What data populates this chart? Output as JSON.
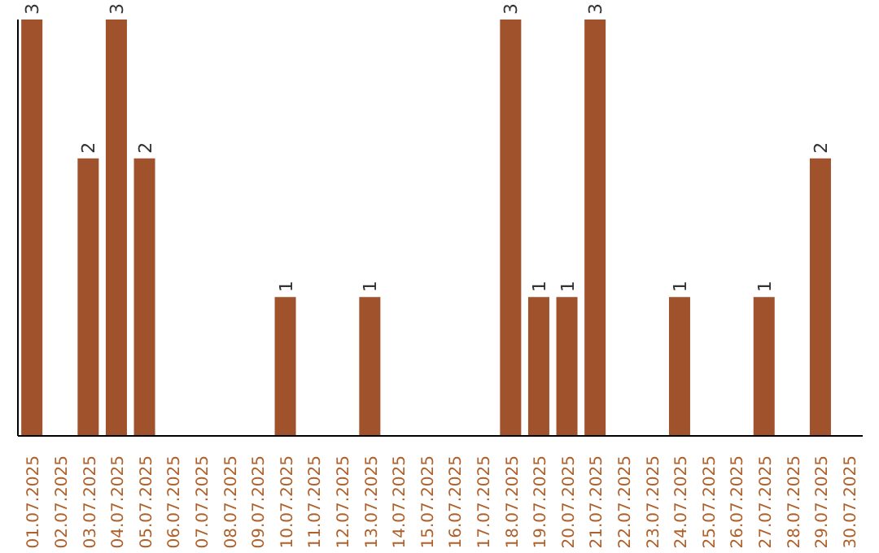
{
  "chart_data": {
    "type": "bar",
    "categories": [
      "01.07.2025",
      "02.07.2025",
      "03.07.2025",
      "04.07.2025",
      "05.07.2025",
      "06.07.2025",
      "07.07.2025",
      "08.07.2025",
      "09.07.2025",
      "10.07.2025",
      "11.07.2025",
      "12.07.2025",
      "13.07.2025",
      "14.07.2025",
      "15.07.2025",
      "16.07.2025",
      "17.07.2025",
      "18.07.2025",
      "19.07.2025",
      "20.07.2025",
      "21.07.2025",
      "22.07.2025",
      "23.07.2025",
      "24.07.2025",
      "25.07.2025",
      "26.07.2025",
      "27.07.2025",
      "28.07.2025",
      "29.07.2025",
      "30.07.2025"
    ],
    "values": [
      3,
      0,
      2,
      3,
      2,
      0,
      0,
      0,
      0,
      1,
      0,
      0,
      1,
      0,
      0,
      0,
      0,
      3,
      1,
      1,
      3,
      0,
      0,
      1,
      0,
      0,
      1,
      0,
      2,
      0
    ],
    "value_labels": [
      "3",
      null,
      "2",
      "3",
      "2",
      null,
      null,
      null,
      null,
      "1",
      null,
      null,
      "1",
      null,
      null,
      null,
      null,
      "3",
      "1",
      "1",
      "3",
      null,
      null,
      "1",
      null,
      null,
      "1",
      null,
      "2",
      null
    ],
    "color": "#a0522d",
    "grid": false,
    "legend": false
  }
}
